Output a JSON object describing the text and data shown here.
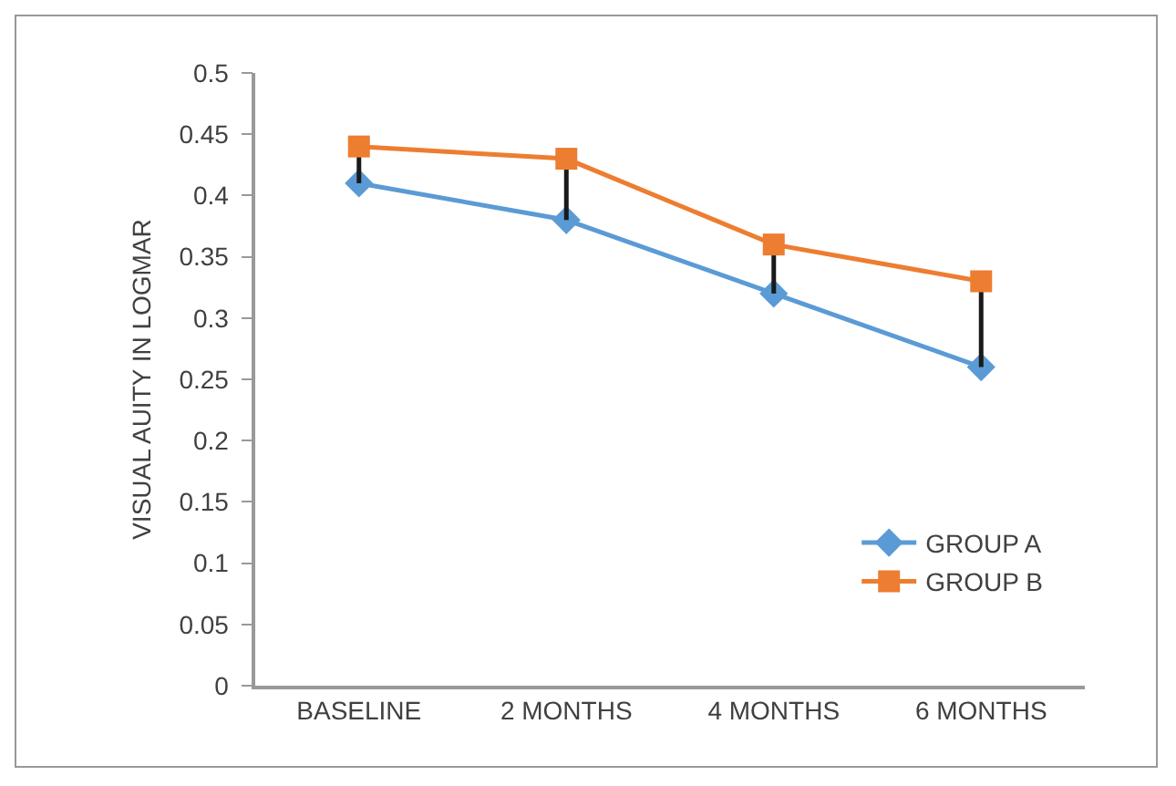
{
  "chart_data": {
    "type": "line",
    "ylabel": "VISUAL AUITY IN LOGMAR",
    "categories": [
      "BASELINE",
      "2 MONTHS",
      "4 MONTHS",
      "6 MONTHS"
    ],
    "series": [
      {
        "name": "GROUP A",
        "color": "#5b9bd5",
        "values": [
          0.41,
          0.38,
          0.32,
          0.26
        ],
        "marker": "diamond"
      },
      {
        "name": "GROUP B",
        "color": "#ed7d31",
        "values": [
          0.44,
          0.43,
          0.36,
          0.33
        ],
        "marker": "square",
        "errors": [
          [
            0.41,
            0.44
          ],
          [
            0.38,
            0.43
          ],
          [
            0.32,
            0.36
          ],
          [
            0.26,
            0.33
          ]
        ]
      }
    ],
    "ylim": [
      0,
      0.5
    ],
    "yticks": [
      0,
      0.05,
      0.1,
      0.15,
      0.2,
      0.25,
      0.3,
      0.35,
      0.4,
      0.45,
      0.5
    ],
    "grid": false,
    "legend": "right"
  }
}
